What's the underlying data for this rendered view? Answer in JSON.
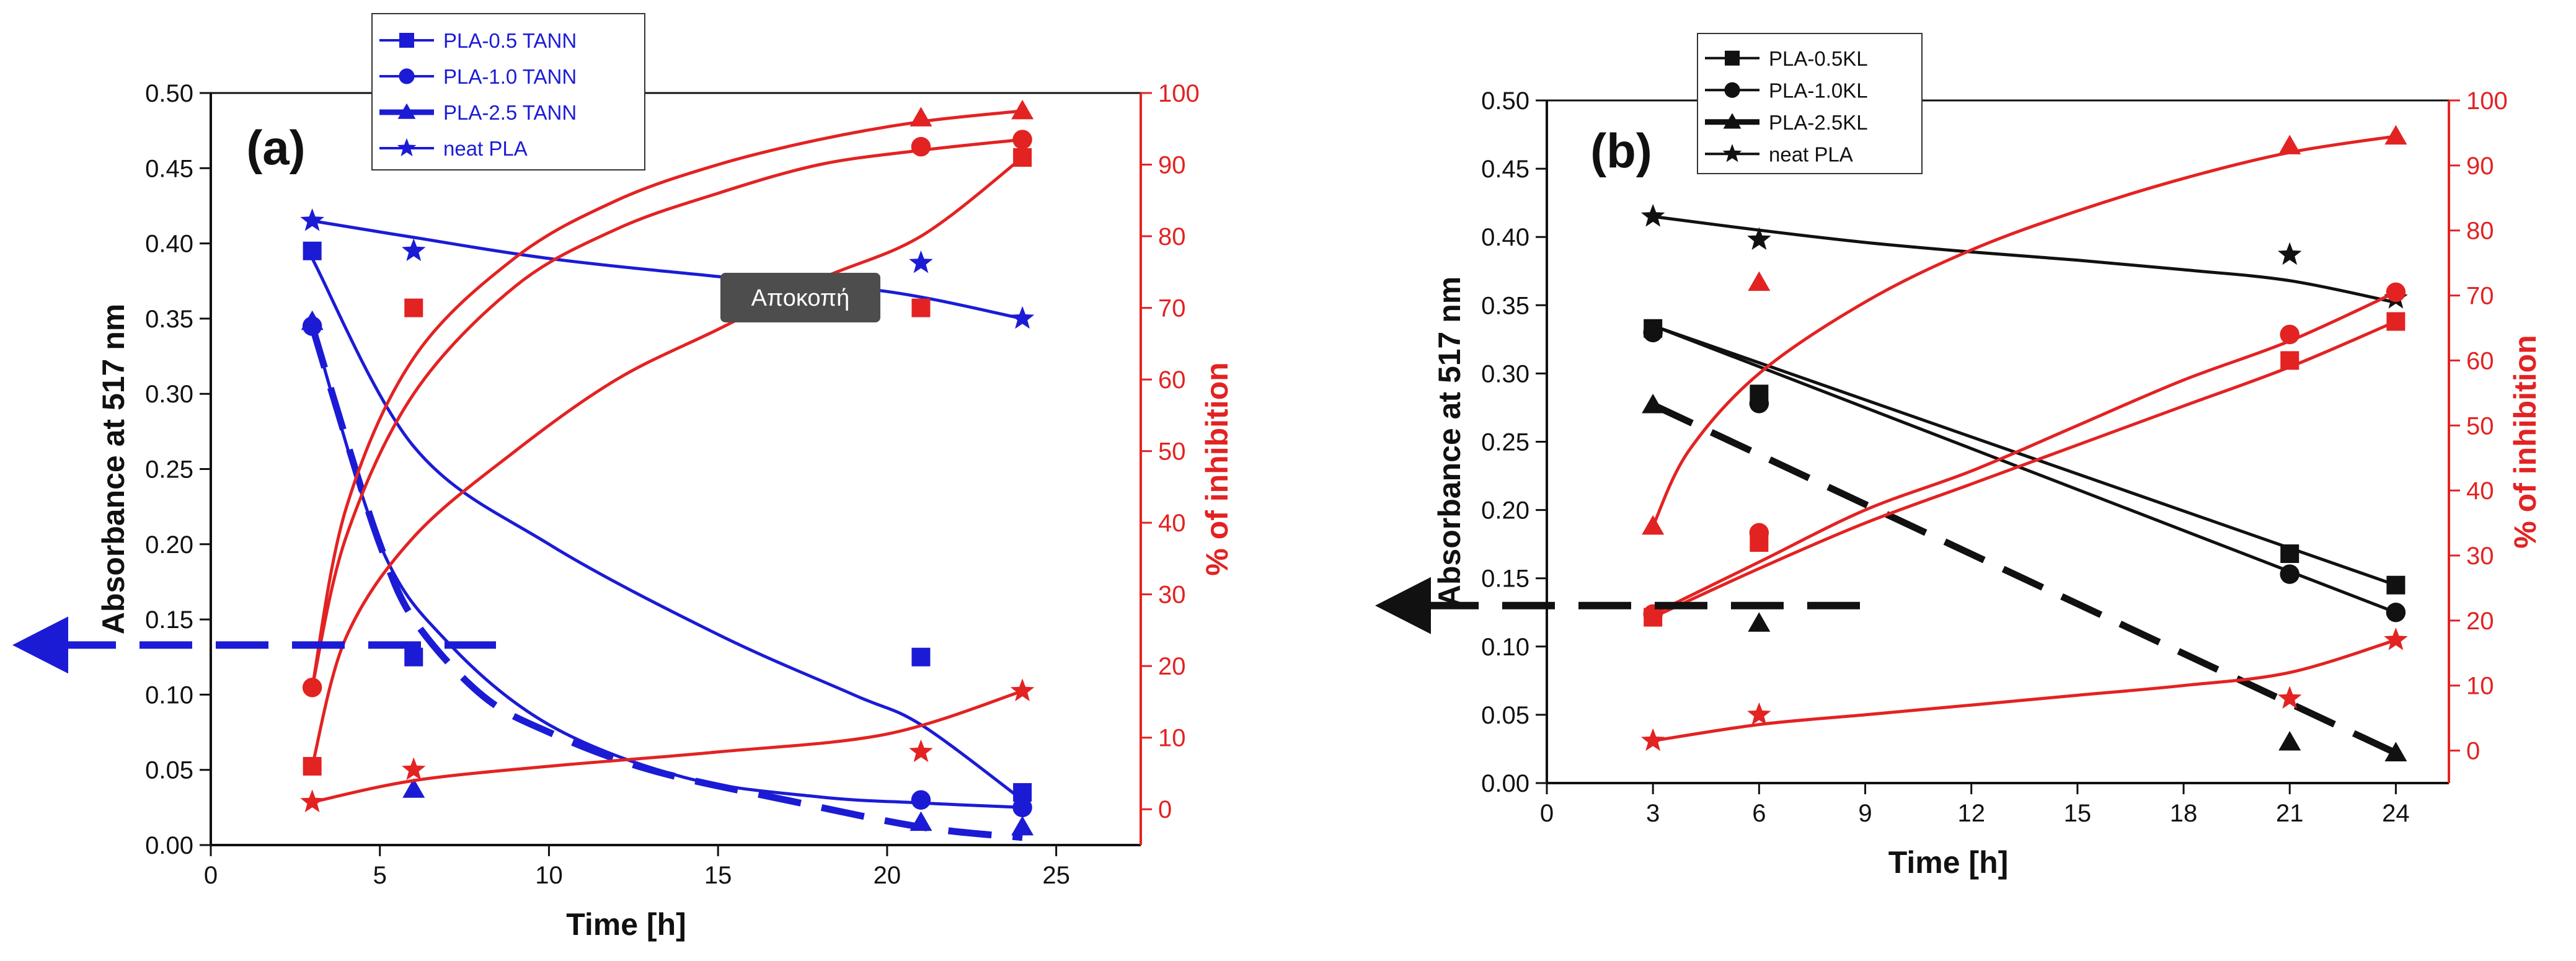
{
  "colors": {
    "blue": "#1b1bd6",
    "red": "#e32222",
    "black": "#111111",
    "tooltip_bg": "#4d4d4d"
  },
  "tooltip": "Αποκοπή",
  "chart_data": [
    {
      "type": "scatter",
      "panel_label": "(a)",
      "xlabel": "Time [h]",
      "ylabel": "Absorbance at 517 nm",
      "ylabel_right": "% of inhibition",
      "xlim": [
        0,
        27.5
      ],
      "ylim": [
        0,
        0.5
      ],
      "ylim_right": [
        -5,
        100
      ],
      "x_ticks": [
        0,
        5,
        10,
        15,
        20,
        25
      ],
      "y_ticks": [
        "0.00",
        "0.05",
        "0.10",
        "0.15",
        "0.20",
        "0.25",
        "0.30",
        "0.35",
        "0.40",
        "0.45",
        "0.50"
      ],
      "y_ticks_right": [
        "0",
        "10",
        "20",
        "30",
        "40",
        "50",
        "60",
        "70",
        "80",
        "90",
        "100"
      ],
      "arrow_y": 0.133,
      "legend": [
        {
          "name": "PLA-0.5 TANN",
          "marker": "square"
        },
        {
          "name": "PLA-1.0 TANN",
          "marker": "circle"
        },
        {
          "name": "PLA-2.5 TANN",
          "marker": "triangle"
        },
        {
          "name": "neat PLA",
          "marker": "star"
        }
      ],
      "series": [
        {
          "name": "PLA-0.5 TANN",
          "color": "blue",
          "marker": "square",
          "axis": "left",
          "line": "solid",
          "x": [
            3,
            6,
            21,
            24
          ],
          "y": [
            0.395,
            0.125,
            0.125,
            0.035
          ],
          "fit_x": [
            3,
            6,
            10,
            15,
            19,
            21,
            24
          ],
          "fit_y": [
            0.39,
            0.265,
            0.2,
            0.14,
            0.1,
            0.08,
            0.03
          ]
        },
        {
          "name": "PLA-1.0 TANN",
          "color": "blue",
          "marker": "circle",
          "axis": "left",
          "line": "solid",
          "x": [
            3,
            21,
            24
          ],
          "y": [
            0.345,
            0.03,
            0.025
          ],
          "fit_x": [
            3,
            5,
            7,
            10,
            14,
            18,
            21,
            24
          ],
          "fit_y": [
            0.345,
            0.2,
            0.135,
            0.08,
            0.045,
            0.032,
            0.028,
            0.025
          ]
        },
        {
          "name": "PLA-2.5 TANN",
          "color": "blue",
          "marker": "triangle",
          "axis": "left",
          "line": "dashed",
          "x": [
            3,
            6,
            21,
            24
          ],
          "y": [
            0.348,
            0.037,
            0.015,
            0.012
          ],
          "fit_x": [
            3,
            4,
            5,
            6,
            8,
            10,
            13,
            17,
            21,
            24
          ],
          "fit_y": [
            0.345,
            0.27,
            0.2,
            0.15,
            0.1,
            0.075,
            0.05,
            0.03,
            0.012,
            0.005
          ]
        },
        {
          "name": "neat PLA",
          "color": "blue",
          "marker": "star",
          "axis": "left",
          "line": "solid",
          "x": [
            3,
            6,
            21,
            24
          ],
          "y": [
            0.415,
            0.395,
            0.387,
            0.35
          ],
          "fit_x": [
            3,
            6,
            10,
            15,
            20,
            24
          ],
          "fit_y": [
            0.415,
            0.404,
            0.39,
            0.378,
            0.368,
            0.35
          ]
        },
        {
          "name": "PLA-0.5 TANN inhibition",
          "color": "red",
          "marker": "square",
          "axis": "right",
          "line": "solid",
          "x": [
            3,
            6,
            21,
            24
          ],
          "y": [
            6,
            70,
            70,
            91
          ],
          "fit_x": [
            3,
            4,
            6,
            9,
            12,
            15,
            18,
            21,
            24
          ],
          "fit_y": [
            6,
            24,
            38,
            50,
            60,
            67,
            74,
            80,
            91
          ]
        },
        {
          "name": "PLA-1.0 TANN inhibition",
          "color": "red",
          "marker": "circle",
          "axis": "right",
          "line": "solid",
          "x": [
            3,
            21,
            24
          ],
          "y": [
            17,
            92.5,
            93.5
          ],
          "fit_x": [
            3,
            4,
            6,
            9,
            12,
            15,
            18,
            21,
            24
          ],
          "fit_y": [
            17,
            38,
            58,
            73,
            81,
            86,
            90,
            92,
            93.5
          ]
        },
        {
          "name": "PLA-2.5 TANN inhibition",
          "color": "red",
          "marker": "triangle",
          "axis": "right",
          "line": "solid",
          "x": [
            21,
            24
          ],
          "y": [
            96.5,
            97.5
          ],
          "fit_x": [
            3,
            4,
            6,
            9,
            12,
            15,
            18,
            21,
            24
          ],
          "fit_y": [
            17,
            42,
            63,
            77,
            85,
            90,
            93.5,
            96,
            97.5
          ]
        },
        {
          "name": "neat PLA inhibition",
          "color": "red",
          "marker": "star",
          "axis": "right",
          "line": "solid",
          "x": [
            3,
            6,
            21,
            24
          ],
          "y": [
            1,
            5.5,
            8,
            16.5
          ],
          "fit_x": [
            3,
            6,
            10,
            15,
            20,
            24
          ],
          "fit_y": [
            1,
            4,
            6,
            8,
            10.5,
            16.5
          ]
        }
      ]
    },
    {
      "type": "scatter",
      "panel_label": "(b)",
      "xlabel": "Time [h]",
      "ylabel": "Absorbance at 517 nm",
      "ylabel_right": "% of inhibition",
      "xlim": [
        0,
        25.5
      ],
      "ylim": [
        0,
        0.5
      ],
      "ylim_right": [
        -5,
        100
      ],
      "x_ticks": [
        0,
        3,
        6,
        9,
        12,
        15,
        18,
        21,
        24
      ],
      "y_ticks": [
        "0.00",
        "0.05",
        "0.10",
        "0.15",
        "0.20",
        "0.25",
        "0.30",
        "0.35",
        "0.40",
        "0.45",
        "0.50"
      ],
      "y_ticks_right": [
        "0",
        "10",
        "20",
        "30",
        "40",
        "50",
        "60",
        "70",
        "80",
        "90",
        "100"
      ],
      "arrow_y": 0.13,
      "legend": [
        {
          "name": "PLA-0.5KL",
          "marker": "square"
        },
        {
          "name": "PLA-1.0KL",
          "marker": "circle"
        },
        {
          "name": "PLA-2.5KL",
          "marker": "triangle"
        },
        {
          "name": "neat PLA",
          "marker": "star"
        }
      ],
      "series": [
        {
          "name": "PLA-0.5KL",
          "color": "black",
          "marker": "square",
          "axis": "left",
          "line": "solid",
          "x": [
            3,
            6,
            21,
            24
          ],
          "y": [
            0.333,
            0.285,
            0.168,
            0.145
          ],
          "fit_x": [
            3,
            24
          ],
          "fit_y": [
            0.335,
            0.145
          ]
        },
        {
          "name": "PLA-1.0KL",
          "color": "black",
          "marker": "circle",
          "axis": "left",
          "line": "solid",
          "x": [
            3,
            6,
            21,
            24
          ],
          "y": [
            0.33,
            0.278,
            0.153,
            0.125
          ],
          "fit_x": [
            3,
            24
          ],
          "fit_y": [
            0.335,
            0.125
          ]
        },
        {
          "name": "PLA-2.5KL",
          "color": "black",
          "marker": "triangle",
          "axis": "left",
          "line": "dashed",
          "x": [
            3,
            6,
            21,
            24
          ],
          "y": [
            0.277,
            0.117,
            0.03,
            0.022
          ],
          "fit_x": [
            3,
            24
          ],
          "fit_y": [
            0.277,
            0.022
          ]
        },
        {
          "name": "neat PLA",
          "color": "black",
          "marker": "star",
          "axis": "left",
          "line": "solid",
          "x": [
            3,
            6,
            21,
            24
          ],
          "y": [
            0.415,
            0.398,
            0.387,
            0.355
          ],
          "fit_x": [
            3,
            6,
            9,
            12,
            15,
            18,
            21,
            24
          ],
          "fit_y": [
            0.415,
            0.405,
            0.396,
            0.389,
            0.383,
            0.376,
            0.368,
            0.352
          ]
        },
        {
          "name": "PLA-0.5KL inhibition",
          "color": "red",
          "marker": "square",
          "axis": "right",
          "line": "solid",
          "x": [
            3,
            6,
            21,
            24
          ],
          "y": [
            20.5,
            32,
            60,
            66
          ],
          "fit_x": [
            3,
            6,
            9,
            12,
            15,
            18,
            21,
            24
          ],
          "fit_y": [
            20.5,
            28,
            35,
            41,
            47,
            53,
            59,
            66
          ]
        },
        {
          "name": "PLA-1.0KL inhibition",
          "color": "red",
          "marker": "circle",
          "axis": "right",
          "line": "solid",
          "x": [
            3,
            6,
            21,
            24
          ],
          "y": [
            21,
            33.5,
            64,
            70.5
          ],
          "fit_x": [
            3,
            6,
            9,
            12,
            15,
            18,
            21,
            24
          ],
          "fit_y": [
            21,
            29,
            37,
            43,
            50,
            57,
            63,
            70.5
          ]
        },
        {
          "name": "PLA-2.5KL inhibition",
          "color": "red",
          "marker": "triangle",
          "axis": "right",
          "line": "solid",
          "x": [
            3,
            6,
            21,
            24
          ],
          "y": [
            34.5,
            72,
            93,
            94.5
          ],
          "fit_x": [
            3,
            4,
            6,
            9,
            12,
            15,
            18,
            21,
            24
          ],
          "fit_y": [
            34.5,
            46,
            58,
            69,
            77,
            83,
            88,
            92,
            94.5
          ]
        },
        {
          "name": "neat PLA inhibition",
          "color": "red",
          "marker": "star",
          "axis": "right",
          "line": "solid",
          "x": [
            3,
            6,
            21,
            24
          ],
          "y": [
            1.5,
            5.5,
            8,
            17
          ],
          "fit_x": [
            3,
            6,
            9,
            12,
            15,
            18,
            21,
            24
          ],
          "fit_y": [
            1.5,
            4,
            5.5,
            7,
            8.5,
            10,
            12,
            17
          ]
        }
      ]
    }
  ]
}
